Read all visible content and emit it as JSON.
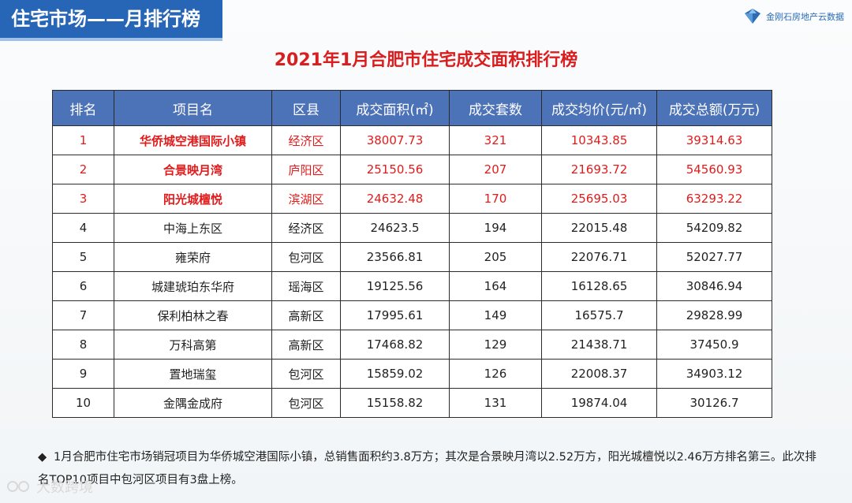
{
  "header": {
    "section_label": "住宅市场——月排行榜"
  },
  "logo": {
    "text": "金刚石房地产云数据",
    "icon": "diamond-logo-icon",
    "color": "#2b6cb6"
  },
  "title": "2021年1月合肥市住宅成交面积排行榜",
  "table": {
    "columns": [
      "排名",
      "项目名",
      "区县",
      "成交面积(㎡)",
      "成交套数",
      "成交均价(元/㎡)",
      "成交总额(万元)"
    ],
    "rows": [
      [
        "1",
        "华侨城空港国际小镇",
        "经济区",
        "38007.73",
        "321",
        "10343.85",
        "39314.63"
      ],
      [
        "2",
        "合景映月湾",
        "庐阳区",
        "25150.56",
        "207",
        "21693.72",
        "54560.93"
      ],
      [
        "3",
        "阳光城檀悦",
        "滨湖区",
        "24632.48",
        "170",
        "25695.03",
        "63293.22"
      ],
      [
        "4",
        "中海上东区",
        "经济区",
        "24623.5",
        "194",
        "22015.48",
        "54209.82"
      ],
      [
        "5",
        "雍荣府",
        "包河区",
        "23566.81",
        "205",
        "22076.71",
        "52027.77"
      ],
      [
        "6",
        "城建琥珀东华府",
        "瑶海区",
        "19125.56",
        "164",
        "16128.65",
        "30846.94"
      ],
      [
        "7",
        "保利柏林之春",
        "高新区",
        "17995.61",
        "149",
        "16575.7",
        "29828.99"
      ],
      [
        "8",
        "万科高第",
        "高新区",
        "17468.82",
        "129",
        "21438.71",
        "37450.9"
      ],
      [
        "9",
        "置地瑞玺",
        "包河区",
        "15859.02",
        "126",
        "22008.37",
        "34903.12"
      ],
      [
        "10",
        "金隅金成府",
        "包河区",
        "15158.82",
        "131",
        "19874.04",
        "30126.7"
      ]
    ],
    "highlight_color": "#e11b1b",
    "header_color": "#4c72b8"
  },
  "note": {
    "bullet": "◆",
    "text": "1月合肥市住宅市场销冠项目为华侨城空港国际小镇，总销售面积约3.8万方；其次是合景映月湾以2.52万方，阳光城檀悦以2.46万方排名第三。此次排名TOP10项目中包河区项目有3盘上榜。"
  },
  "watermark": {
    "text": "大数跨境"
  }
}
